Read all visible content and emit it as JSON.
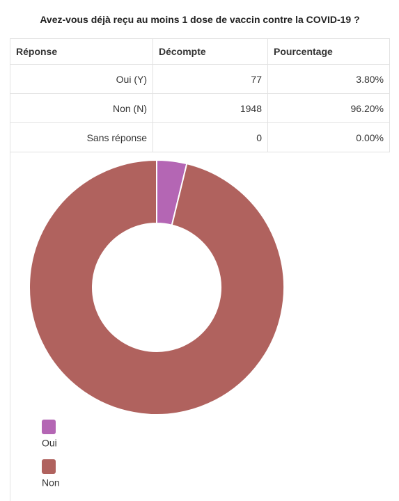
{
  "title": "Avez-vous déjà reçu au moins 1 dose de vaccin contre la COVID-19 ?",
  "table": {
    "header": [
      "Réponse",
      "Décompte",
      "Pourcentage"
    ],
    "rows": [
      [
        "Oui (Y)",
        77,
        "3.80%"
      ],
      [
        "Non (N)",
        1948,
        "96.20%"
      ],
      [
        "Sans réponse",
        0,
        "0.00%"
      ]
    ]
  },
  "chart_data": {
    "type": "pie",
    "categories": [
      "Oui",
      "Non"
    ],
    "values": [
      77,
      1948
    ],
    "colors": [
      "#b466b4",
      "#b0625e"
    ],
    "donut": true
  }
}
